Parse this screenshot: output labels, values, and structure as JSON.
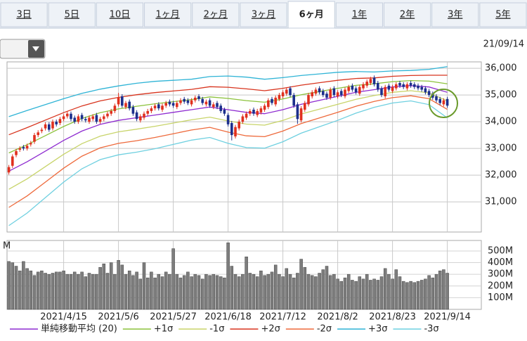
{
  "tabs": [
    "3日",
    "5日",
    "10日",
    "1ヶ月",
    "2ヶ月",
    "3ヶ月",
    "6ヶ月",
    "1年",
    "2年",
    "3年",
    "5年"
  ],
  "selected_tab": 6,
  "date": "21/09/14",
  "chart_data": {
    "type": "candlestick",
    "categories": [
      null,
      null,
      null,
      null,
      null,
      null,
      null,
      null,
      null,
      null,
      null,
      null,
      null,
      null,
      null,
      "2021/4/15",
      null,
      null,
      null,
      null,
      null,
      null,
      null,
      null,
      null,
      null,
      null,
      null,
      null,
      null,
      "2021/5/6",
      null,
      null,
      null,
      null,
      null,
      null,
      null,
      null,
      null,
      null,
      null,
      null,
      null,
      null,
      "2021/5/27",
      null,
      null,
      null,
      null,
      null,
      null,
      null,
      null,
      null,
      null,
      null,
      null,
      null,
      null,
      "2021/6/18",
      null,
      null,
      null,
      null,
      null,
      null,
      null,
      null,
      null,
      null,
      null,
      null,
      null,
      null,
      "2021/7/12",
      null,
      null,
      null,
      null,
      null,
      null,
      null,
      null,
      null,
      null,
      null,
      null,
      null,
      null,
      "2021/8/2",
      null,
      null,
      null,
      null,
      null,
      null,
      null,
      null,
      null,
      null,
      null,
      null,
      null,
      null,
      "2021/8/23",
      null,
      null,
      null,
      null,
      null,
      null,
      null,
      null,
      null,
      null,
      null,
      null,
      null,
      null,
      "2021/9/14"
    ],
    "open": [
      32100,
      32350,
      32750,
      32950,
      33050,
      33000,
      33150,
      33250,
      33500,
      33650,
      33750,
      33900,
      33750,
      34000,
      33950,
      34100,
      34200,
      34300,
      34150,
      34000,
      34250,
      34100,
      34000,
      34100,
      34250,
      34000,
      34100,
      34200,
      34300,
      34400,
      34650,
      34950,
      34550,
      34750,
      34550,
      34350,
      34050,
      34150,
      34300,
      34400,
      34500,
      34650,
      34450,
      34600,
      34750,
      34700,
      34550,
      34700,
      34850,
      34800,
      34650,
      34800,
      34950,
      34850,
      34650,
      34800,
      34550,
      34700,
      34600,
      34450,
      34250,
      33950,
      33450,
      33750,
      34000,
      34150,
      34300,
      34450,
      34250,
      34350,
      34450,
      34550,
      34850,
      34650,
      34850,
      34950,
      35050,
      35250,
      35000,
      34650,
      34050,
      34450,
      34650,
      34950,
      35050,
      35250,
      35150,
      35050,
      34900,
      35250,
      34950,
      35150,
      34950,
      35150,
      35350,
      35250,
      35050,
      35250,
      35350,
      35450,
      35650,
      35450,
      35250,
      34950,
      35350,
      35150,
      35250,
      35450,
      35400,
      35250,
      35450,
      35400,
      35350,
      35300,
      35250,
      35150,
      35050,
      34950,
      34850,
      34650,
      34850
    ],
    "high": [
      32380,
      32780,
      32980,
      33080,
      33130,
      33180,
      33280,
      33580,
      33680,
      33780,
      33980,
      33980,
      34080,
      34080,
      34180,
      34280,
      34380,
      34380,
      34230,
      34280,
      34330,
      34180,
      34230,
      34280,
      34330,
      34180,
      34280,
      34380,
      34480,
      34680,
      35080,
      35030,
      34780,
      34830,
      34630,
      34430,
      34280,
      34380,
      34480,
      34580,
      34680,
      34730,
      34680,
      34780,
      34830,
      34780,
      34780,
      34880,
      34930,
      34880,
      34880,
      34980,
      35030,
      34930,
      34830,
      34880,
      34730,
      34780,
      34680,
      34530,
      34330,
      34030,
      33880,
      34080,
      34280,
      34380,
      34480,
      34530,
      34480,
      34580,
      34680,
      34880,
      34930,
      34980,
      35080,
      35180,
      35280,
      35330,
      35080,
      34730,
      34580,
      34780,
      35080,
      35180,
      35280,
      35330,
      35230,
      35130,
      35280,
      35330,
      35180,
      35230,
      35280,
      35380,
      35430,
      35330,
      35380,
      35480,
      35580,
      35680,
      35730,
      35530,
      35330,
      35380,
      35430,
      35380,
      35480,
      35530,
      35480,
      35480,
      35530,
      35480,
      35430,
      35380,
      35330,
      35230,
      35130,
      35030,
      34930,
      34880,
      34930
    ],
    "low": [
      32020,
      32270,
      32670,
      32870,
      32920,
      32920,
      33070,
      33170,
      33420,
      33570,
      33670,
      33620,
      33670,
      33820,
      33870,
      34020,
      34120,
      34020,
      33920,
      33920,
      34020,
      33970,
      33920,
      34020,
      33920,
      33920,
      34020,
      34120,
      34220,
      34320,
      34570,
      34520,
      34470,
      34420,
      34220,
      34020,
      33970,
      34070,
      34220,
      34320,
      34420,
      34420,
      34370,
      34520,
      34570,
      34520,
      34470,
      34620,
      34670,
      34620,
      34570,
      34720,
      34770,
      34620,
      34570,
      34520,
      34470,
      34470,
      34320,
      34220,
      33820,
      33300,
      33370,
      33670,
      33920,
      34070,
      34220,
      34220,
      34170,
      34270,
      34370,
      34470,
      34620,
      34570,
      34770,
      34870,
      34970,
      34920,
      34520,
      33920,
      33970,
      34370,
      34570,
      34870,
      34970,
      35020,
      34920,
      34820,
      34820,
      34920,
      34870,
      34920,
      34870,
      35070,
      35120,
      35020,
      34970,
      35170,
      35270,
      35370,
      35320,
      35120,
      34920,
      34870,
      35120,
      35070,
      35170,
      35270,
      35220,
      35170,
      35270,
      35220,
      35170,
      35120,
      35020,
      34920,
      34820,
      34720,
      34620,
      34570,
      34520
    ],
    "close": [
      32300,
      32700,
      32900,
      33000,
      33000,
      33100,
      33200,
      33500,
      33600,
      33700,
      33900,
      33700,
      34000,
      33900,
      34100,
      34200,
      34300,
      34100,
      34000,
      34200,
      34100,
      34050,
      34150,
      34200,
      34000,
      34100,
      34200,
      34300,
      34400,
      34600,
      34900,
      34600,
      34700,
      34500,
      34300,
      34100,
      34200,
      34300,
      34400,
      34500,
      34600,
      34500,
      34600,
      34700,
      34650,
      34600,
      34700,
      34800,
      34750,
      34700,
      34800,
      34900,
      34850,
      34700,
      34750,
      34600,
      34650,
      34550,
      34400,
      34300,
      33900,
      33500,
      33800,
      34000,
      34200,
      34300,
      34400,
      34300,
      34400,
      34500,
      34600,
      34800,
      34700,
      34900,
      35000,
      35100,
      35200,
      35000,
      34600,
      34100,
      34500,
      34700,
      35000,
      35100,
      35200,
      35100,
      35000,
      34900,
      35200,
      35000,
      35100,
      35000,
      35200,
      35300,
      35200,
      35100,
      35300,
      35400,
      35500,
      35600,
      35400,
      35200,
      35000,
      35300,
      35200,
      35300,
      35400,
      35350,
      35300,
      35400,
      35350,
      35300,
      35250,
      35200,
      35100,
      35000,
      34900,
      34800,
      34700,
      34800,
      34600
    ],
    "up_color": "#e0301e",
    "down_color": "#1c2f8c",
    "ylim": [
      29870,
      36240
    ],
    "yticks": [
      {
        "value": 31000,
        "label": "31,000"
      },
      {
        "value": 32000,
        "label": "32,000"
      },
      {
        "value": 33000,
        "label": "33,000"
      },
      {
        "value": 34000,
        "label": "34,000"
      },
      {
        "value": 35000,
        "label": "35,000"
      },
      {
        "value": 36000,
        "label": "36,000"
      }
    ],
    "grid": true,
    "bands": [
      {
        "name": "単純移動平均 (20)",
        "color": "#8e2bd0",
        "values": [
          32150,
          32500,
          32900,
          33300,
          33650,
          33900,
          34050,
          34150,
          34250,
          34350,
          34450,
          34550,
          34450,
          34350,
          34300,
          34450,
          34650,
          34800,
          34950,
          35100,
          35200,
          35300,
          35350,
          35300,
          35100
        ]
      },
      {
        "name": "+1σ",
        "color": "#8cc23c",
        "values": [
          32830,
          33140,
          33480,
          33820,
          34120,
          34340,
          34480,
          34580,
          34670,
          34750,
          34830,
          34930,
          34870,
          34790,
          34730,
          34850,
          35010,
          35130,
          35250,
          35360,
          35420,
          35500,
          35540,
          35520,
          35420
        ]
      },
      {
        "name": "-1σ",
        "color": "#c8d46a",
        "values": [
          31470,
          31860,
          32320,
          32780,
          33180,
          33460,
          33620,
          33720,
          33830,
          33950,
          34070,
          34170,
          34030,
          33910,
          33870,
          34050,
          34290,
          34470,
          34650,
          34840,
          34980,
          35100,
          35160,
          35080,
          34780
        ]
      },
      {
        "name": "+2σ",
        "color": "#d8341e",
        "values": [
          33510,
          33780,
          34060,
          34340,
          34590,
          34780,
          34910,
          35010,
          35090,
          35150,
          35210,
          35310,
          35290,
          35230,
          35160,
          35250,
          35370,
          35460,
          35550,
          35620,
          35640,
          35700,
          35730,
          35740,
          35740
        ]
      },
      {
        "name": "-2σ",
        "color": "#ee6a3c",
        "values": [
          30790,
          31220,
          31740,
          32260,
          32710,
          33020,
          33190,
          33290,
          33410,
          33550,
          33690,
          33790,
          33610,
          33470,
          33440,
          33650,
          33930,
          34140,
          34350,
          34580,
          34760,
          34900,
          34970,
          34860,
          34460
        ]
      },
      {
        "name": "+3σ",
        "color": "#2fb4d6",
        "values": [
          34190,
          34420,
          34640,
          34860,
          35060,
          35220,
          35340,
          35440,
          35510,
          35550,
          35590,
          35690,
          35710,
          35670,
          35590,
          35650,
          35730,
          35790,
          35850,
          35880,
          35860,
          35900,
          35920,
          35960,
          36060
        ]
      },
      {
        "name": "-3σ",
        "color": "#6fd0e0",
        "values": [
          30110,
          30580,
          31160,
          31740,
          32240,
          32580,
          32760,
          32860,
          32990,
          33150,
          33310,
          33410,
          33190,
          33030,
          33010,
          33250,
          33570,
          33810,
          34050,
          34320,
          34540,
          34700,
          34780,
          34640,
          34140
        ]
      }
    ],
    "volume": {
      "unit": "M",
      "color": "#7d7d7d",
      "values": [
        410,
        400,
        370,
        330,
        410,
        350,
        330,
        290,
        320,
        330,
        310,
        300,
        310,
        320,
        320,
        330,
        300,
        300,
        320,
        300,
        320,
        280,
        310,
        300,
        300,
        360,
        390,
        310,
        400,
        300,
        420,
        380,
        300,
        330,
        290,
        320,
        260,
        400,
        270,
        320,
        270,
        300,
        280,
        320,
        300,
        520,
        300,
        270,
        290,
        320,
        280,
        300,
        290,
        260,
        300,
        290,
        300,
        290,
        280,
        270,
        570,
        370,
        300,
        280,
        300,
        450,
        310,
        300,
        280,
        330,
        290,
        300,
        320,
        380,
        300,
        280,
        350,
        300,
        270,
        310,
        430,
        360,
        300,
        290,
        280,
        310,
        340,
        370,
        290,
        300,
        260,
        240,
        270,
        300,
        250,
        240,
        280,
        260,
        300,
        250,
        260,
        250,
        280,
        350,
        300,
        260,
        340,
        280,
        240,
        230,
        240,
        230,
        240,
        250,
        260,
        290,
        270,
        300,
        330,
        340,
        310
      ],
      "ylim": [
        0,
        590
      ],
      "yticks": [
        {
          "value": 100,
          "label": "100M"
        },
        {
          "value": 200,
          "label": "200M"
        },
        {
          "value": 300,
          "label": "300M"
        },
        {
          "value": 400,
          "label": "400M"
        },
        {
          "value": 500,
          "label": "500M"
        }
      ]
    }
  }
}
